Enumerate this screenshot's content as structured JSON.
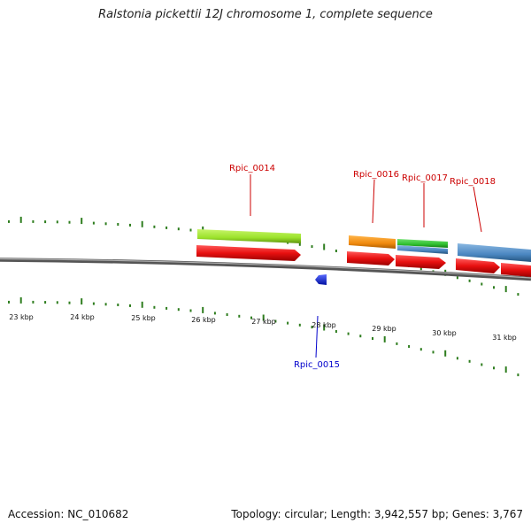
{
  "title": "Ralstonia pickettii 12J chromosome 1, complete sequence",
  "footer": {
    "accession": "Accession: NC_010682",
    "summary": "Topology: circular; Length: 3,942,557 bp; Genes: 3,767"
  },
  "scale": {
    "unit": "kbp",
    "labels": [
      "23 kbp",
      "24 kbp",
      "25 kbp",
      "26 kbp",
      "27 kbp",
      "28 kbp",
      "29 kbp",
      "30 kbp",
      "31 kbp"
    ]
  },
  "gene_labels": [
    {
      "text": "Rpic_0014",
      "strand": "forward",
      "color": "#cc0000"
    },
    {
      "text": "Rpic_0016",
      "strand": "forward",
      "color": "#cc0000"
    },
    {
      "text": "Rpic_0017",
      "strand": "forward",
      "color": "#cc0000"
    },
    {
      "text": "Rpic_0018",
      "strand": "forward",
      "color": "#cc0000"
    },
    {
      "text": "Rpic_0015",
      "strand": "reverse",
      "color": "#0000cc"
    }
  ],
  "colors": {
    "backbone": "#7a7a7a",
    "ticks": "#2e7d1e",
    "cds_forward": "#e81010",
    "cds_reverse": "#1a2ee0",
    "feature_lime": "#9be22a",
    "feature_orange": "#f08a0e",
    "feature_green": "#2fc02f",
    "feature_blue": "#4a86c0"
  }
}
